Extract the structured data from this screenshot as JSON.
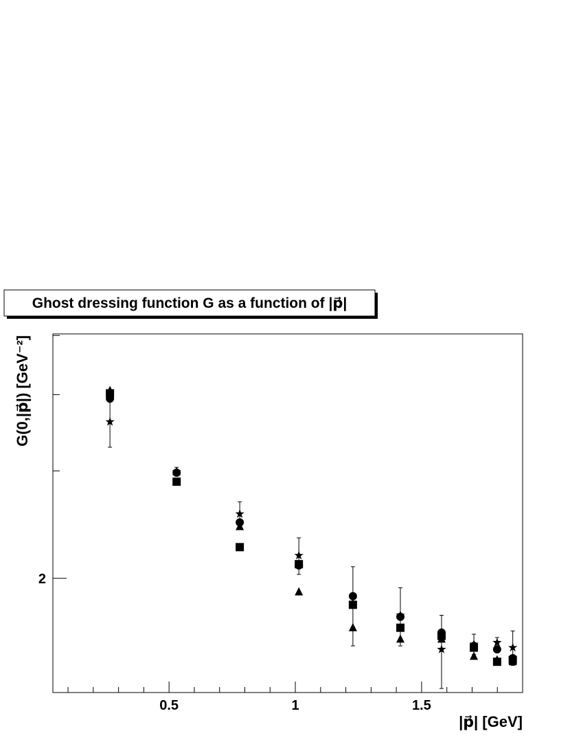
{
  "chart_data": {
    "type": "scatter",
    "title": "Ghost dressing function G as a function of |p⃗|",
    "x_label": "|p⃗| [GeV]",
    "y_label": "G(0,|p⃗|) [GeV⁻²]",
    "xlim": [
      0.04,
      1.9
    ],
    "ylim": [
      1.3,
      5.03
    ],
    "y_scale": "log",
    "xticks": [
      0.5,
      1,
      1.5
    ],
    "xminor_ticks": [
      0.1,
      0.2,
      0.3,
      0.4,
      0.6,
      0.7,
      0.8,
      0.9,
      1.1,
      1.2,
      1.3,
      1.4,
      1.6,
      1.7,
      1.8
    ],
    "yticks": [
      2
    ],
    "yminor_ticks": [
      3,
      4,
      5
    ],
    "x": [
      0.266,
      0.53,
      0.78,
      1.014,
      1.228,
      1.416,
      1.579,
      1.707,
      1.799,
      1.861
    ],
    "series": [
      {
        "marker": "circle",
        "color": "#000000",
        "values": [
          3.94,
          2.98,
          2.47,
          2.1,
          1.87,
          1.73,
          1.63,
          1.55,
          1.53,
          1.48
        ]
      },
      {
        "marker": "square",
        "color": "#000000",
        "values": [
          4.02,
          2.88,
          2.25,
          2.11,
          1.81,
          1.66,
          1.61,
          1.54,
          1.46,
          1.47
        ]
      },
      {
        "marker": "triangle",
        "color": "#000000",
        "values": [
          4.06,
          2.99,
          2.43,
          1.9,
          1.66,
          1.59,
          1.59,
          1.49,
          1.47,
          1.46
        ]
      },
      {
        "marker": "star",
        "color": "#000000",
        "values": [
          3.61,
          2.99,
          2.55,
          2.18,
          1.82,
          1.74,
          1.53,
          1.56,
          1.57,
          1.54
        ],
        "errors": [
          0.33,
          0.05,
          0.12,
          0.15,
          0.27,
          0.19,
          0.21,
          0.06,
          0.03,
          0.1
        ]
      }
    ]
  }
}
